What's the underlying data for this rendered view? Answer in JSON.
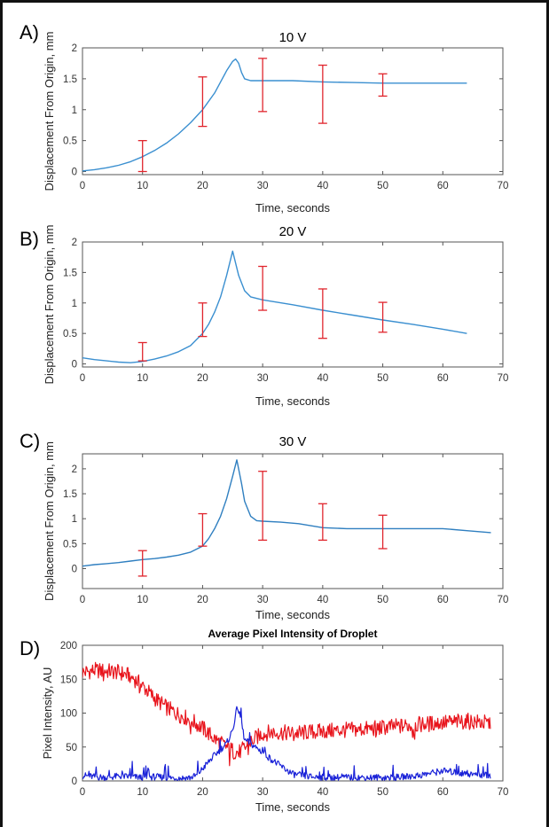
{
  "chart_data": [
    {
      "type": "line",
      "panel": "A)",
      "title": "10 V",
      "xlabel": "Time, seconds",
      "ylabel": "Displacement From Origin, mm",
      "xlim": [
        0,
        70
      ],
      "ylim": [
        -0.05,
        2
      ],
      "xticks": [
        0,
        10,
        20,
        30,
        40,
        50,
        60,
        70
      ],
      "yticks": [
        0,
        0.5,
        1,
        1.5,
        2
      ],
      "series": [
        {
          "color": "#3a8fd0",
          "x": [
            0,
            2,
            4,
            6,
            8,
            10,
            12,
            14,
            16,
            18,
            20,
            22,
            23,
            24,
            25,
            25.5,
            26,
            26.5,
            27,
            28,
            30,
            35,
            40,
            45,
            50,
            55,
            60,
            64
          ],
          "y": [
            0.01,
            0.03,
            0.06,
            0.1,
            0.16,
            0.24,
            0.34,
            0.46,
            0.61,
            0.79,
            1.0,
            1.27,
            1.45,
            1.63,
            1.78,
            1.82,
            1.75,
            1.6,
            1.5,
            1.47,
            1.47,
            1.47,
            1.45,
            1.44,
            1.43,
            1.43,
            1.43,
            1.43
          ]
        }
      ],
      "error_bars": [
        {
          "x": 10,
          "low": 0.0,
          "high": 0.5
        },
        {
          "x": 20,
          "low": 0.73,
          "high": 1.53
        },
        {
          "x": 30,
          "low": 0.97,
          "high": 1.83
        },
        {
          "x": 40,
          "low": 0.78,
          "high": 1.72
        },
        {
          "x": 50,
          "low": 1.22,
          "high": 1.58
        }
      ],
      "error_color": "#e0242c"
    },
    {
      "type": "line",
      "panel": "B)",
      "title": "20 V",
      "xlabel": "Time, seconds",
      "ylabel": "Displacement From Origin, mm",
      "xlim": [
        0,
        70
      ],
      "ylim": [
        -0.05,
        2
      ],
      "xticks": [
        0,
        10,
        20,
        30,
        40,
        50,
        60,
        70
      ],
      "yticks": [
        0,
        0.5,
        1,
        1.5,
        2
      ],
      "series": [
        {
          "color": "#3a8fd0",
          "x": [
            0,
            2,
            4,
            6,
            8,
            10,
            12,
            14,
            16,
            18,
            20,
            21,
            22,
            23,
            24,
            25,
            26,
            27,
            28,
            30,
            35,
            40,
            45,
            50,
            55,
            60,
            64
          ],
          "y": [
            0.1,
            0.07,
            0.05,
            0.03,
            0.02,
            0.04,
            0.08,
            0.13,
            0.2,
            0.3,
            0.5,
            0.65,
            0.85,
            1.1,
            1.45,
            1.85,
            1.45,
            1.2,
            1.1,
            1.05,
            0.97,
            0.88,
            0.8,
            0.72,
            0.65,
            0.57,
            0.5
          ]
        }
      ],
      "error_bars": [
        {
          "x": 10,
          "low": 0.05,
          "high": 0.35
        },
        {
          "x": 20,
          "low": 0.45,
          "high": 1.0
        },
        {
          "x": 30,
          "low": 0.88,
          "high": 1.6
        },
        {
          "x": 40,
          "low": 0.42,
          "high": 1.23
        },
        {
          "x": 50,
          "low": 0.52,
          "high": 1.01
        }
      ],
      "error_color": "#e0242c"
    },
    {
      "type": "line",
      "panel": "C)",
      "title": "30 V",
      "xlabel": "Time, seconds",
      "ylabel": "Displacement From Origin, mm",
      "xlim": [
        0,
        70
      ],
      "ylim": [
        -0.4,
        2.3
      ],
      "xticks": [
        0,
        10,
        20,
        30,
        40,
        50,
        60,
        70
      ],
      "yticks": [
        0,
        0.5,
        1,
        1.5,
        2
      ],
      "series": [
        {
          "color": "#2f7fc0",
          "x": [
            0,
            2,
            4,
            6,
            8,
            10,
            12,
            14,
            16,
            18,
            20,
            21,
            22,
            23,
            24,
            25,
            25.7,
            26.5,
            27,
            28,
            29,
            30,
            33,
            36,
            40,
            44,
            48,
            52,
            56,
            60,
            64,
            68
          ],
          "y": [
            0.05,
            0.08,
            0.1,
            0.12,
            0.15,
            0.18,
            0.2,
            0.23,
            0.27,
            0.33,
            0.45,
            0.6,
            0.8,
            1.05,
            1.4,
            1.85,
            2.18,
            1.7,
            1.35,
            1.05,
            0.96,
            0.95,
            0.93,
            0.9,
            0.82,
            0.8,
            0.8,
            0.8,
            0.8,
            0.8,
            0.76,
            0.72
          ]
        }
      ],
      "error_bars": [
        {
          "x": 10,
          "low": -0.15,
          "high": 0.36
        },
        {
          "x": 20,
          "low": 0.45,
          "high": 1.1
        },
        {
          "x": 30,
          "low": 0.57,
          "high": 1.95
        },
        {
          "x": 40,
          "low": 0.57,
          "high": 1.3
        },
        {
          "x": 50,
          "low": 0.4,
          "high": 1.07
        }
      ],
      "error_color": "#e0242c"
    },
    {
      "type": "line",
      "panel": "D)",
      "title": "Average Pixel Intensity of Droplet",
      "xlabel": "Time, seconds",
      "ylabel": "Pixel Intensity, AU",
      "xlim": [
        0,
        70
      ],
      "ylim": [
        0,
        200
      ],
      "xticks": [
        0,
        10,
        20,
        30,
        40,
        50,
        60,
        70
      ],
      "yticks": [
        0,
        50,
        100,
        150,
        200
      ],
      "series": [
        {
          "color": "#e8141c",
          "x": [
            0,
            2,
            4,
            6,
            8,
            10,
            12,
            14,
            16,
            18,
            20,
            22,
            24,
            25,
            26,
            27,
            28,
            30,
            32,
            35,
            38,
            40,
            44,
            48,
            52,
            56,
            60,
            64,
            68
          ],
          "y": [
            160,
            163,
            162,
            160,
            155,
            140,
            122,
            108,
            98,
            90,
            78,
            62,
            50,
            45,
            42,
            48,
            58,
            70,
            72,
            70,
            72,
            73,
            75,
            77,
            80,
            83,
            86,
            88,
            85
          ]
        },
        {
          "color": "#1a22d8",
          "x": [
            0,
            2,
            4,
            6,
            8,
            10,
            12,
            14,
            16,
            18,
            19,
            20,
            22,
            24,
            25,
            25.8,
            26.5,
            27,
            28,
            30,
            32,
            35,
            38,
            40,
            44,
            48,
            52,
            56,
            60,
            64,
            68
          ],
          "y": [
            8,
            6,
            5,
            7,
            6,
            5,
            6,
            5,
            4,
            5,
            8,
            18,
            38,
            55,
            75,
            110,
            85,
            60,
            55,
            42,
            28,
            10,
            6,
            5,
            5,
            5,
            5,
            8,
            15,
            10,
            8
          ]
        }
      ]
    }
  ]
}
